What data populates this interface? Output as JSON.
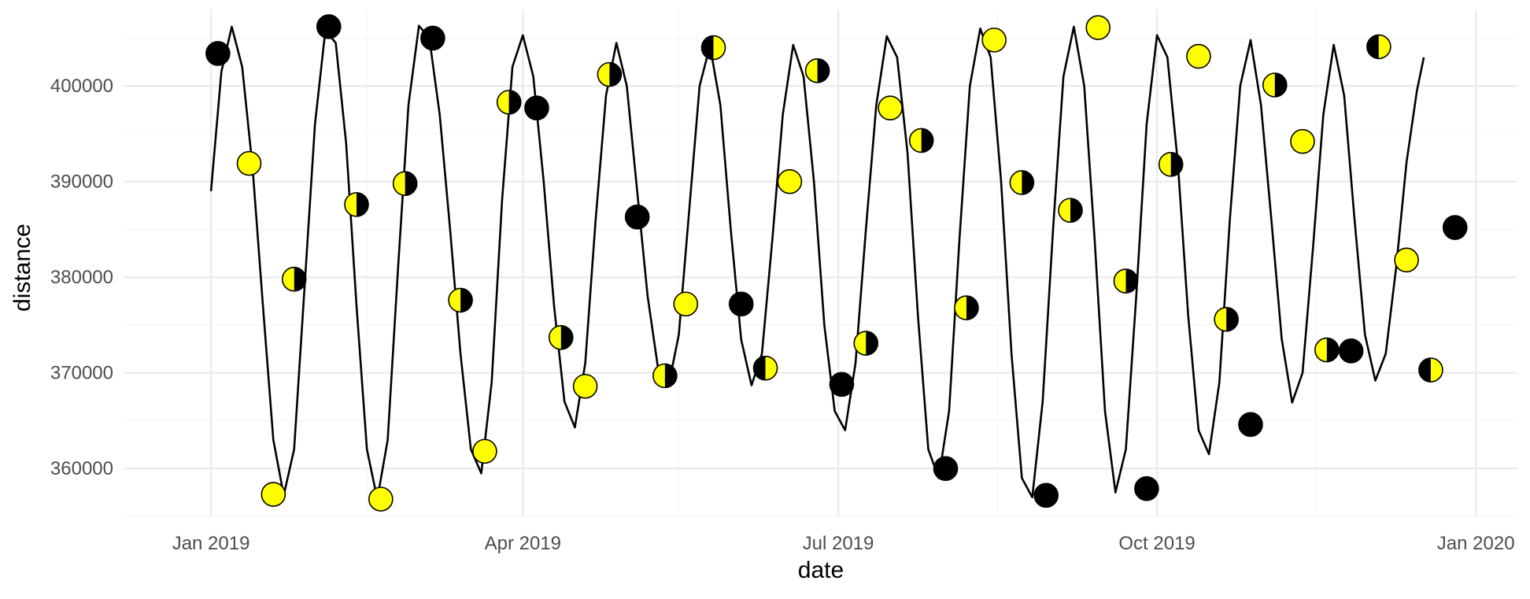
{
  "chart_data": {
    "type": "line+scatter",
    "xlabel": "date",
    "ylabel": "distance",
    "xlim": [
      "2018-12-07",
      "2020-01-13"
    ],
    "ylim": [
      355000,
      408000
    ],
    "x_ticks": [
      {
        "date": "2019-01-01",
        "label": "Jan 2019"
      },
      {
        "date": "2019-04-01",
        "label": "Apr 2019"
      },
      {
        "date": "2019-07-01",
        "label": "Jul 2019"
      },
      {
        "date": "2019-10-01",
        "label": "Oct 2019"
      },
      {
        "date": "2020-01-01",
        "label": "Jan 2020"
      }
    ],
    "x_minor_ticks": [
      "2019-02-15",
      "2019-05-16",
      "2019-08-16",
      "2019-11-16"
    ],
    "y_ticks": [
      {
        "value": 360000,
        "label": "360000"
      },
      {
        "value": 370000,
        "label": "370000"
      },
      {
        "value": 380000,
        "label": "380000"
      },
      {
        "value": 390000,
        "label": "390000"
      },
      {
        "value": 400000,
        "label": "400000"
      }
    ],
    "y_minor_ticks": [
      355000,
      365000,
      375000,
      385000,
      395000,
      405000
    ],
    "grid": true,
    "line": {
      "name": "",
      "color": "#000000",
      "points": [
        [
          "2019-01-01",
          389000
        ],
        [
          "2019-01-04",
          401500
        ],
        [
          "2019-01-07",
          406200
        ],
        [
          "2019-01-10",
          402000
        ],
        [
          "2019-01-13",
          391500
        ],
        [
          "2019-01-16",
          377000
        ],
        [
          "2019-01-19",
          363000
        ],
        [
          "2019-01-22",
          357200
        ],
        [
          "2019-01-25",
          362000
        ],
        [
          "2019-01-28",
          379000
        ],
        [
          "2019-01-31",
          396000
        ],
        [
          "2019-02-03",
          405800
        ],
        [
          "2019-02-06",
          404500
        ],
        [
          "2019-02-09",
          394000
        ],
        [
          "2019-02-12",
          377000
        ],
        [
          "2019-02-15",
          362000
        ],
        [
          "2019-02-18",
          356800
        ],
        [
          "2019-02-21",
          363000
        ],
        [
          "2019-02-24",
          381000
        ],
        [
          "2019-02-27",
          398000
        ],
        [
          "2019-03-02",
          406300
        ],
        [
          "2019-03-05",
          405000
        ],
        [
          "2019-03-08",
          397000
        ],
        [
          "2019-03-11",
          385000
        ],
        [
          "2019-03-14",
          372000
        ],
        [
          "2019-03-17",
          362000
        ],
        [
          "2019-03-20",
          359500
        ],
        [
          "2019-03-23",
          369000
        ],
        [
          "2019-03-26",
          388000
        ],
        [
          "2019-03-29",
          402000
        ],
        [
          "2019-04-01",
          405300
        ],
        [
          "2019-04-04",
          401000
        ],
        [
          "2019-04-07",
          390000
        ],
        [
          "2019-04-10",
          377000
        ],
        [
          "2019-04-13",
          367000
        ],
        [
          "2019-04-16",
          364300
        ],
        [
          "2019-04-19",
          371000
        ],
        [
          "2019-04-22",
          386000
        ],
        [
          "2019-04-25",
          399000
        ],
        [
          "2019-04-28",
          404500
        ],
        [
          "2019-05-01",
          400000
        ],
        [
          "2019-05-04",
          389000
        ],
        [
          "2019-05-07",
          378000
        ],
        [
          "2019-05-10",
          370500
        ],
        [
          "2019-05-13",
          368600
        ],
        [
          "2019-05-16",
          374000
        ],
        [
          "2019-05-19",
          387000
        ],
        [
          "2019-05-22",
          400000
        ],
        [
          "2019-05-25",
          404200
        ],
        [
          "2019-05-28",
          398000
        ],
        [
          "2019-05-31",
          385000
        ],
        [
          "2019-06-03",
          373500
        ],
        [
          "2019-06-06",
          368700
        ],
        [
          "2019-06-09",
          372000
        ],
        [
          "2019-06-12",
          384000
        ],
        [
          "2019-06-15",
          397000
        ],
        [
          "2019-06-18",
          404300
        ],
        [
          "2019-06-21",
          401000
        ],
        [
          "2019-06-24",
          390000
        ],
        [
          "2019-06-27",
          375000
        ],
        [
          "2019-06-30",
          366000
        ],
        [
          "2019-07-03",
          364000
        ],
        [
          "2019-07-06",
          371000
        ],
        [
          "2019-07-09",
          385000
        ],
        [
          "2019-07-12",
          398000
        ],
        [
          "2019-07-15",
          405200
        ],
        [
          "2019-07-18",
          403000
        ],
        [
          "2019-07-21",
          393000
        ],
        [
          "2019-07-24",
          376000
        ],
        [
          "2019-07-27",
          362000
        ],
        [
          "2019-07-30",
          359000
        ],
        [
          "2019-08-02",
          366000
        ],
        [
          "2019-08-05",
          384000
        ],
        [
          "2019-08-08",
          400000
        ],
        [
          "2019-08-11",
          406000
        ],
        [
          "2019-08-14",
          403000
        ],
        [
          "2019-08-17",
          390000
        ],
        [
          "2019-08-20",
          372000
        ],
        [
          "2019-08-23",
          359000
        ],
        [
          "2019-08-26",
          357000
        ],
        [
          "2019-08-29",
          367000
        ],
        [
          "2019-09-01",
          385000
        ],
        [
          "2019-09-04",
          401000
        ],
        [
          "2019-09-07",
          406200
        ],
        [
          "2019-09-10",
          400000
        ],
        [
          "2019-09-13",
          384000
        ],
        [
          "2019-09-16",
          366000
        ],
        [
          "2019-09-19",
          357500
        ],
        [
          "2019-09-22",
          362000
        ],
        [
          "2019-09-25",
          378000
        ],
        [
          "2019-09-28",
          396000
        ],
        [
          "2019-10-01",
          405300
        ],
        [
          "2019-10-04",
          403000
        ],
        [
          "2019-10-07",
          392000
        ],
        [
          "2019-10-10",
          376000
        ],
        [
          "2019-10-13",
          364000
        ],
        [
          "2019-10-16",
          361500
        ],
        [
          "2019-10-19",
          369000
        ],
        [
          "2019-10-22",
          386000
        ],
        [
          "2019-10-25",
          400000
        ],
        [
          "2019-10-28",
          404800
        ],
        [
          "2019-10-31",
          398000
        ],
        [
          "2019-11-03",
          386000
        ],
        [
          "2019-11-06",
          373500
        ],
        [
          "2019-11-09",
          366900
        ],
        [
          "2019-11-12",
          370000
        ],
        [
          "2019-11-15",
          383000
        ],
        [
          "2019-11-18",
          397000
        ],
        [
          "2019-11-21",
          404300
        ],
        [
          "2019-11-24",
          399000
        ],
        [
          "2019-11-27",
          386000
        ],
        [
          "2019-11-30",
          374000
        ],
        [
          "2019-12-03",
          369200
        ],
        [
          "2019-12-06",
          372000
        ],
        [
          "2019-12-09",
          381000
        ],
        [
          "2019-12-12",
          392000
        ],
        [
          "2019-12-15",
          399500
        ],
        [
          "2019-12-17",
          403000
        ]
      ]
    },
    "points": [
      {
        "date": "2019-01-03",
        "distance": 403400,
        "phase": "full-black"
      },
      {
        "date": "2019-01-12",
        "distance": 391900,
        "phase": "full-yellow"
      },
      {
        "date": "2019-01-19",
        "distance": 357300,
        "phase": "full-yellow"
      },
      {
        "date": "2019-01-25",
        "distance": 379800,
        "phase": "yellow-left"
      },
      {
        "date": "2019-02-04",
        "distance": 406200,
        "phase": "full-black"
      },
      {
        "date": "2019-02-12",
        "distance": 387600,
        "phase": "yellow-left"
      },
      {
        "date": "2019-02-19",
        "distance": 356800,
        "phase": "full-yellow"
      },
      {
        "date": "2019-02-26",
        "distance": 389800,
        "phase": "yellow-left"
      },
      {
        "date": "2019-03-06",
        "distance": 405000,
        "phase": "full-black"
      },
      {
        "date": "2019-03-14",
        "distance": 377600,
        "phase": "yellow-left"
      },
      {
        "date": "2019-03-21",
        "distance": 361800,
        "phase": "full-yellow"
      },
      {
        "date": "2019-03-28",
        "distance": 398300,
        "phase": "yellow-left"
      },
      {
        "date": "2019-04-05",
        "distance": 397700,
        "phase": "full-black"
      },
      {
        "date": "2019-04-12",
        "distance": 373700,
        "phase": "yellow-left"
      },
      {
        "date": "2019-04-19",
        "distance": 368600,
        "phase": "full-yellow"
      },
      {
        "date": "2019-04-26",
        "distance": 401200,
        "phase": "yellow-left"
      },
      {
        "date": "2019-05-04",
        "distance": 386300,
        "phase": "full-black"
      },
      {
        "date": "2019-05-12",
        "distance": 369700,
        "phase": "yellow-left"
      },
      {
        "date": "2019-05-18",
        "distance": 377200,
        "phase": "full-yellow"
      },
      {
        "date": "2019-05-26",
        "distance": 404000,
        "phase": "black-left"
      },
      {
        "date": "2019-06-03",
        "distance": 377200,
        "phase": "full-black"
      },
      {
        "date": "2019-06-10",
        "distance": 370500,
        "phase": "black-left"
      },
      {
        "date": "2019-06-17",
        "distance": 390000,
        "phase": "full-yellow"
      },
      {
        "date": "2019-06-25",
        "distance": 401600,
        "phase": "yellow-left"
      },
      {
        "date": "2019-07-02",
        "distance": 368800,
        "phase": "full-black"
      },
      {
        "date": "2019-07-09",
        "distance": 373100,
        "phase": "yellow-left"
      },
      {
        "date": "2019-07-16",
        "distance": 397700,
        "phase": "full-yellow"
      },
      {
        "date": "2019-07-25",
        "distance": 394300,
        "phase": "yellow-left"
      },
      {
        "date": "2019-08-01",
        "distance": 360000,
        "phase": "full-black"
      },
      {
        "date": "2019-08-07",
        "distance": 376800,
        "phase": "yellow-left"
      },
      {
        "date": "2019-08-15",
        "distance": 404800,
        "phase": "full-yellow"
      },
      {
        "date": "2019-08-23",
        "distance": 389900,
        "phase": "yellow-left"
      },
      {
        "date": "2019-08-30",
        "distance": 357200,
        "phase": "full-black"
      },
      {
        "date": "2019-09-06",
        "distance": 387000,
        "phase": "yellow-left"
      },
      {
        "date": "2019-09-14",
        "distance": 406100,
        "phase": "full-yellow"
      },
      {
        "date": "2019-09-22",
        "distance": 379600,
        "phase": "yellow-left"
      },
      {
        "date": "2019-09-28",
        "distance": 357900,
        "phase": "full-black"
      },
      {
        "date": "2019-10-05",
        "distance": 391800,
        "phase": "yellow-left"
      },
      {
        "date": "2019-10-13",
        "distance": 403100,
        "phase": "full-yellow"
      },
      {
        "date": "2019-10-21",
        "distance": 375600,
        "phase": "yellow-left"
      },
      {
        "date": "2019-10-28",
        "distance": 364600,
        "phase": "full-black"
      },
      {
        "date": "2019-11-04",
        "distance": 400100,
        "phase": "yellow-left"
      },
      {
        "date": "2019-11-12",
        "distance": 394200,
        "phase": "full-yellow"
      },
      {
        "date": "2019-11-19",
        "distance": 372400,
        "phase": "yellow-left"
      },
      {
        "date": "2019-11-26",
        "distance": 372300,
        "phase": "full-black"
      },
      {
        "date": "2019-12-04",
        "distance": 404100,
        "phase": "black-left"
      },
      {
        "date": "2019-12-12",
        "distance": 381800,
        "phase": "full-yellow"
      },
      {
        "date": "2019-12-19",
        "distance": 370300,
        "phase": "black-left"
      },
      {
        "date": "2019-12-26",
        "distance": 385200,
        "phase": "full-black"
      }
    ],
    "colors": {
      "moon_light": "#ffff00",
      "moon_dark": "#000000",
      "marker_outline": "#000000",
      "curve": "#000000",
      "grid_major": "#ebebeb",
      "grid_minor": "#f5f5f5",
      "tick_text": "#4d4d4d",
      "axis_title": "#000000"
    }
  }
}
